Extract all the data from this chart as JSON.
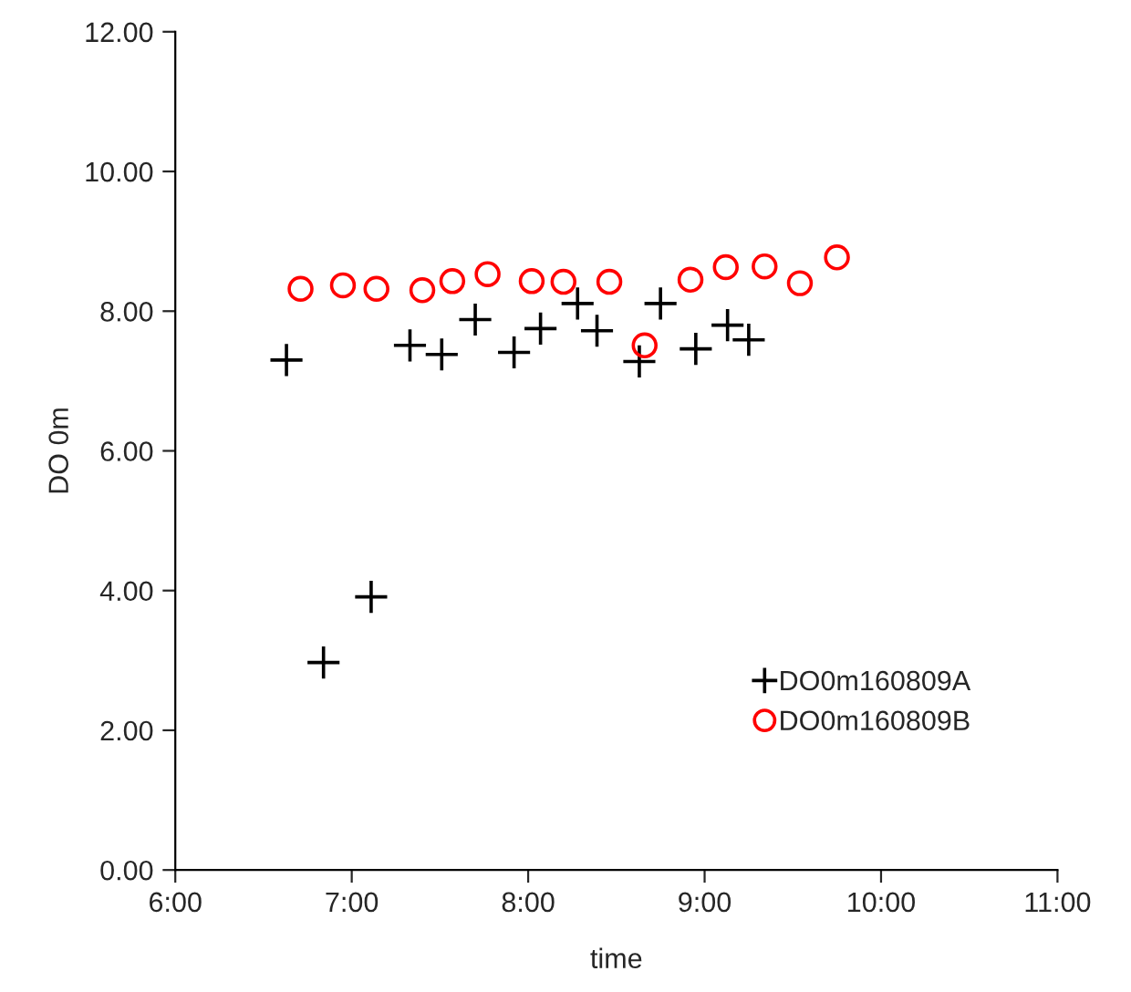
{
  "chart_data": {
    "type": "scatter",
    "xlabel": "time",
    "ylabel": "DO 0m",
    "xlim": [
      6,
      11
    ],
    "xticks": [
      {
        "value": 6,
        "label": "6:00"
      },
      {
        "value": 7,
        "label": "7:00"
      },
      {
        "value": 8,
        "label": "8:00"
      },
      {
        "value": 9,
        "label": "9:00"
      },
      {
        "value": 10,
        "label": "10:00"
      },
      {
        "value": 11,
        "label": "11:00"
      }
    ],
    "ylim": [
      0,
      12
    ],
    "yticks": [
      {
        "value": 0,
        "label": "0.00"
      },
      {
        "value": 2,
        "label": "2.00"
      },
      {
        "value": 4,
        "label": "4.00"
      },
      {
        "value": 6,
        "label": "6.00"
      },
      {
        "value": 8,
        "label": "8.00"
      },
      {
        "value": 10,
        "label": "10.00"
      },
      {
        "value": 12,
        "label": "12.00"
      }
    ],
    "grid": false,
    "legend": "bottom right",
    "series": [
      {
        "name": "DO0m160809A",
        "color": "#000000",
        "marker": "cross",
        "x": [
          6.63,
          6.84,
          7.11,
          7.33,
          7.51,
          7.7,
          7.92,
          8.07,
          8.28,
          8.39,
          8.63,
          8.75,
          8.95,
          9.13,
          9.25
        ],
        "values": [
          7.3,
          2.97,
          3.91,
          7.51,
          7.38,
          7.88,
          7.41,
          7.75,
          8.11,
          7.72,
          7.28,
          8.11,
          7.46,
          7.8,
          7.59
        ]
      },
      {
        "name": "DO0m160809B",
        "color": "#ff0000",
        "marker": "circle",
        "x": [
          6.71,
          6.95,
          7.14,
          7.4,
          7.57,
          7.77,
          8.02,
          8.2,
          8.46,
          8.66,
          8.92,
          9.12,
          9.34,
          9.54,
          9.75
        ],
        "values": [
          8.32,
          8.37,
          8.32,
          8.3,
          8.43,
          8.53,
          8.43,
          8.42,
          8.42,
          7.51,
          8.45,
          8.63,
          8.64,
          8.4,
          8.77
        ]
      }
    ]
  }
}
